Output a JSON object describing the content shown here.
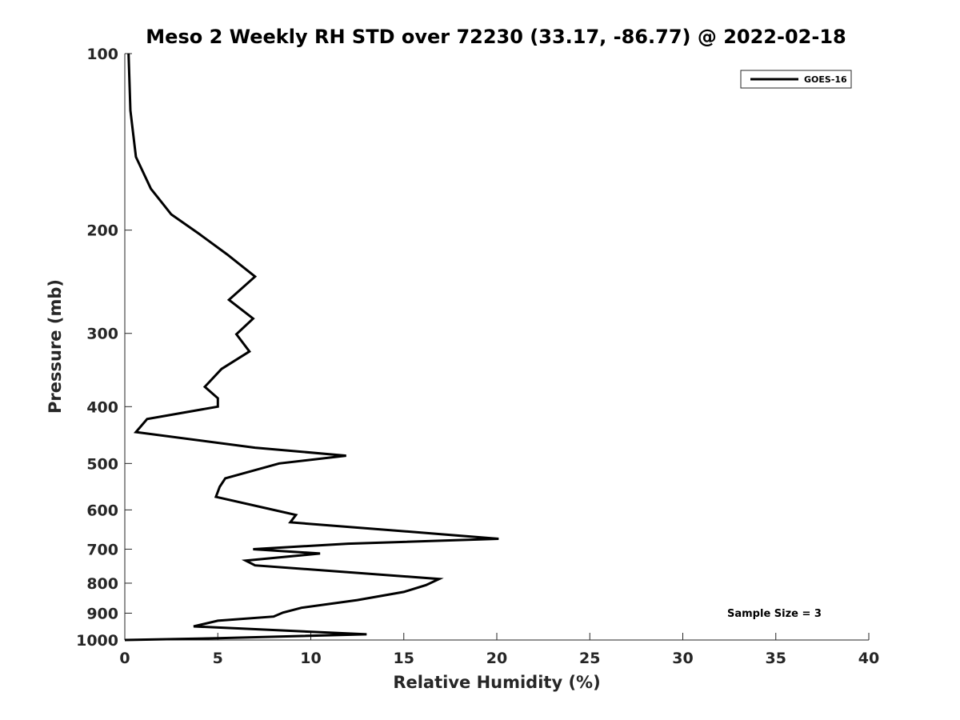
{
  "chart_data": {
    "type": "line",
    "title": "Meso 2 Weekly RH STD over 72230 (33.17, -86.77) @ 2022-02-18",
    "xlabel": "Relative Humidity (%)",
    "ylabel": "Pressure (mb)",
    "xlim": [
      0,
      40
    ],
    "ylim": [
      100,
      1000
    ],
    "yscale": "log",
    "y_reversed": true,
    "grid": false,
    "legend_position": "top-right",
    "x_ticks": [
      0,
      5,
      10,
      15,
      20,
      25,
      30,
      35,
      40
    ],
    "x_tick_labels": [
      "0",
      "5",
      "10",
      "15",
      "20",
      "25",
      "30",
      "35",
      "40"
    ],
    "y_ticks": [
      100,
      200,
      300,
      400,
      500,
      600,
      700,
      800,
      900,
      1000
    ],
    "y_tick_labels": [
      "100",
      "200",
      "300",
      "400",
      "500",
      "600",
      "700",
      "800",
      "900",
      "1000"
    ],
    "series": [
      {
        "name": "GOES-16",
        "x": [
          0.2,
          0.3,
          0.6,
          1.4,
          2.5,
          4.0,
          5.5,
          7.0,
          5.6,
          6.9,
          6.0,
          6.7,
          5.2,
          4.3,
          5.0,
          5.0,
          1.2,
          0.6,
          7.0,
          11.9,
          8.3,
          5.4,
          5.1,
          4.9,
          8.0,
          9.2,
          8.9,
          17.0,
          20.1,
          12.0,
          6.9,
          10.5,
          6.5,
          7.0,
          16.9,
          16.2,
          15.0,
          12.5,
          9.5,
          8.5,
          8.0,
          5.0,
          3.7,
          13.0,
          5.0,
          0.0
        ],
        "y": [
          100,
          125,
          150,
          170,
          188,
          203,
          220,
          240,
          263,
          283,
          301,
          322,
          345,
          370,
          387,
          400,
          420,
          442,
          470,
          485,
          500,
          530,
          548,
          570,
          600,
          612,
          630,
          660,
          672,
          685,
          700,
          712,
          732,
          746,
          787,
          806,
          828,
          855,
          881,
          898,
          912,
          927,
          948,
          978,
          993,
          1000
        ]
      }
    ],
    "annotations": [
      "Sample Size = 3"
    ]
  }
}
